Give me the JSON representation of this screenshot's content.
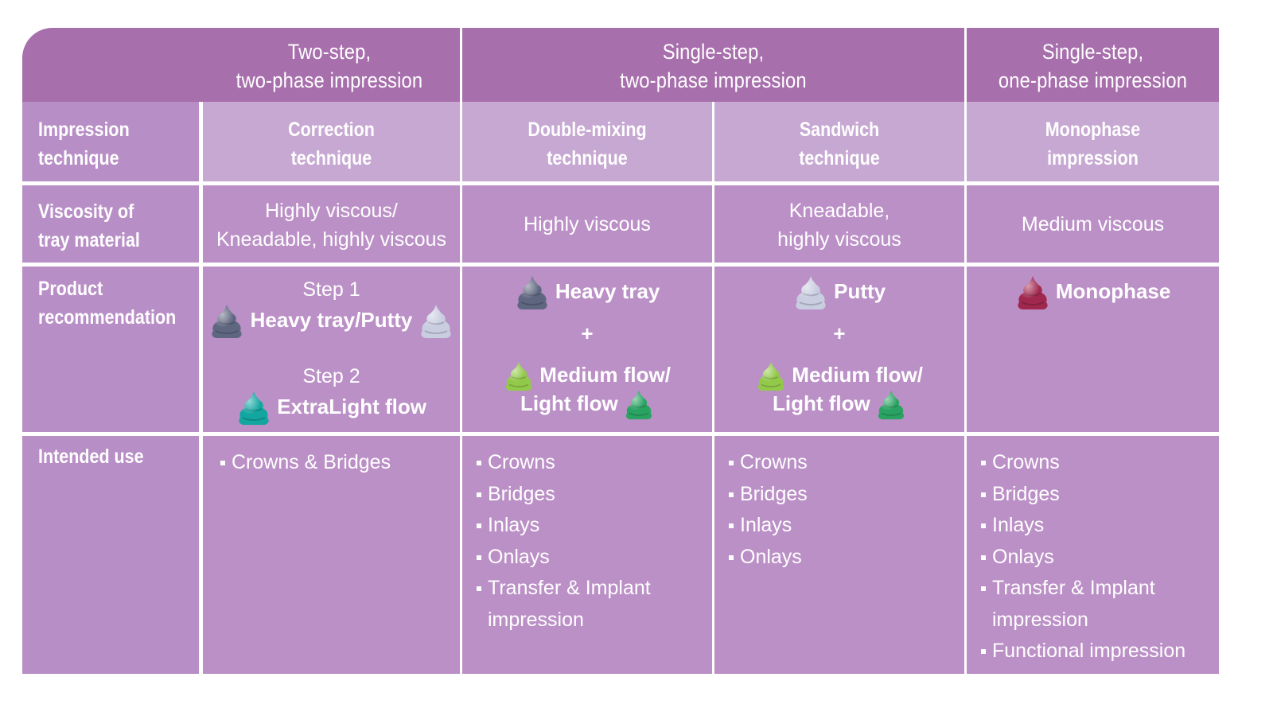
{
  "headers": {
    "group1": "Two-step,\ntwo-phase impression",
    "group2": "Single-step,\ntwo-phase impression",
    "group3": "Single-step,\none-phase impression"
  },
  "rows": {
    "technique_label": "Impression\ntechnique",
    "viscosity_label": "Viscosity of\ntray material",
    "product_label": "Product\nrecommendation",
    "use_label": "Intended use"
  },
  "techniques": {
    "correction": "Correction\ntechnique",
    "double_mixing": "Double-mixing\ntechnique",
    "sandwich": "Sandwich\ntechnique",
    "monophase": "Monophase\nimpression"
  },
  "viscosity": {
    "correction": "Highly viscous/\nKneadable, highly viscous",
    "double_mixing": "Highly viscous",
    "sandwich": "Kneadable,\nhighly viscous",
    "monophase": "Medium viscous"
  },
  "products": {
    "correction": {
      "step1": "Step 1",
      "tray": "Heavy tray/Putty",
      "step2": "Step 2",
      "flow": "ExtraLight flow"
    },
    "double_mixing": {
      "tray": "Heavy tray",
      "plus": "+",
      "flow_line1": "Medium flow/",
      "flow_line2": "Light flow"
    },
    "sandwich": {
      "tray": "Putty",
      "plus": "+",
      "flow_line1": "Medium flow/",
      "flow_line2": "Light flow"
    },
    "monophase": {
      "tray": "Monophase"
    }
  },
  "uses": {
    "correction": [
      "Crowns & Bridges"
    ],
    "double_mixing": [
      "Crowns",
      "Bridges",
      "Inlays",
      "Onlays",
      "Transfer & Implant\nimpression"
    ],
    "sandwich": [
      "Crowns",
      "Bridges",
      "Inlays",
      "Onlays"
    ],
    "monophase": [
      "Crowns",
      "Bridges",
      "Inlays",
      "Onlays",
      "Transfer & Implant\nimpression",
      "Functional impression"
    ]
  },
  "colors": {
    "header_bg": "#a86fad",
    "technique_bg": "#c7a8d2",
    "body_bg": "#bb90c6",
    "heavy_tray": "#5f6780",
    "putty": "#c9cde0",
    "extralight": "#13a6a0",
    "medium_flow": "#93c94a",
    "light_flow": "#2aa362",
    "monophase": "#a0284f"
  },
  "icons": {
    "heavy_tray": "heavy-tray-blob-icon",
    "putty": "putty-blob-icon",
    "extralight": "extralight-flow-blob-icon",
    "medium_flow": "medium-flow-blob-icon",
    "light_flow": "light-flow-blob-icon",
    "monophase": "monophase-blob-icon"
  }
}
